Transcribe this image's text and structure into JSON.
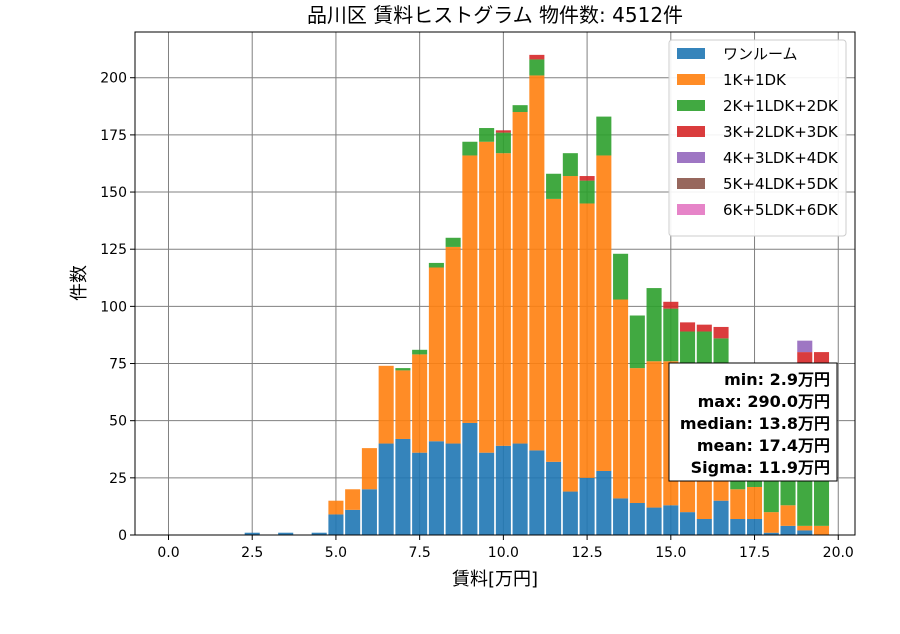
{
  "chart_data": {
    "type": "bar",
    "stacked": true,
    "title": "品川区 賃料ヒストグラム 物件数: 4512件",
    "xlabel": "賃料[万円]",
    "ylabel": "件数",
    "xlim": [
      -1.0,
      20.5
    ],
    "ylim": [
      0,
      220
    ],
    "xticks": [
      "0.0",
      "2.5",
      "5.0",
      "7.5",
      "10.0",
      "12.5",
      "15.0",
      "17.5",
      "20.0"
    ],
    "yticks": [
      "0",
      "25",
      "50",
      "75",
      "100",
      "125",
      "150",
      "175",
      "200"
    ],
    "grid": true,
    "legend_position": "top-right",
    "bin_width": 0.5,
    "x": [
      2.5,
      3.5,
      4.5,
      5.0,
      5.5,
      6.0,
      6.5,
      7.0,
      7.5,
      8.0,
      8.5,
      9.0,
      9.5,
      10.0,
      10.5,
      11.0,
      11.5,
      12.0,
      12.5,
      13.0,
      13.5,
      14.0,
      14.5,
      15.0,
      15.5,
      16.0,
      16.5,
      17.0,
      17.5,
      18.0,
      18.5,
      19.0,
      19.5
    ],
    "series": [
      {
        "name": "ワンルーム",
        "color": "#1f77b4",
        "values": [
          1,
          1,
          1,
          9,
          11,
          20,
          40,
          42,
          36,
          41,
          40,
          49,
          36,
          39,
          40,
          37,
          32,
          19,
          25,
          28,
          16,
          14,
          12,
          13,
          10,
          7,
          15,
          7,
          7,
          1,
          4,
          2,
          0
        ]
      },
      {
        "name": "1K+1DK",
        "color": "#ff7f0e",
        "values": [
          0,
          0,
          0,
          6,
          9,
          18,
          34,
          30,
          43,
          76,
          86,
          117,
          136,
          128,
          145,
          164,
          115,
          138,
          120,
          138,
          87,
          59,
          64,
          63,
          45,
          40,
          31,
          13,
          14,
          9,
          9,
          2,
          4
        ]
      },
      {
        "name": "2K+1LDK+2DK",
        "color": "#2ca02c",
        "values": [
          0,
          0,
          0,
          0,
          0,
          0,
          0,
          1,
          2,
          2,
          4,
          6,
          6,
          9,
          3,
          7,
          11,
          10,
          10,
          17,
          20,
          23,
          32,
          23,
          34,
          42,
          40,
          40,
          43,
          52,
          53,
          69,
          71
        ]
      },
      {
        "name": "3K+2LDK+3DK",
        "color": "#d62728",
        "values": [
          0,
          0,
          0,
          0,
          0,
          0,
          0,
          0,
          0,
          0,
          0,
          0,
          0,
          1,
          0,
          2,
          0,
          0,
          2,
          0,
          0,
          0,
          0,
          3,
          4,
          3,
          5,
          3,
          3,
          3,
          4,
          7,
          5
        ]
      },
      {
        "name": "4K+3LDK+4DK",
        "color": "#9467bd",
        "values": [
          0,
          0,
          0,
          0,
          0,
          0,
          0,
          0,
          0,
          0,
          0,
          0,
          0,
          0,
          0,
          0,
          0,
          0,
          0,
          0,
          0,
          0,
          0,
          0,
          0,
          0,
          0,
          0,
          0,
          0,
          0,
          5,
          0
        ]
      },
      {
        "name": "5K+4LDK+5DK",
        "color": "#8c564b",
        "values": [
          0,
          0,
          0,
          0,
          0,
          0,
          0,
          0,
          0,
          0,
          0,
          0,
          0,
          0,
          0,
          0,
          0,
          0,
          0,
          0,
          0,
          0,
          0,
          0,
          0,
          0,
          0,
          0,
          0,
          0,
          0,
          0,
          0
        ]
      },
      {
        "name": "6K+5LDK+6DK",
        "color": "#e377c2",
        "values": [
          0,
          0,
          0,
          0,
          0,
          0,
          0,
          0,
          0,
          0,
          0,
          0,
          0,
          0,
          0,
          0,
          0,
          0,
          0,
          0,
          0,
          0,
          0,
          0,
          0,
          0,
          0,
          0,
          0,
          0,
          0,
          0,
          0
        ]
      }
    ],
    "stats": [
      "min: 2.9万円",
      "max: 290.0万円",
      "median: 13.8万円",
      "mean: 17.4万円",
      "Sigma: 11.9万円"
    ]
  }
}
